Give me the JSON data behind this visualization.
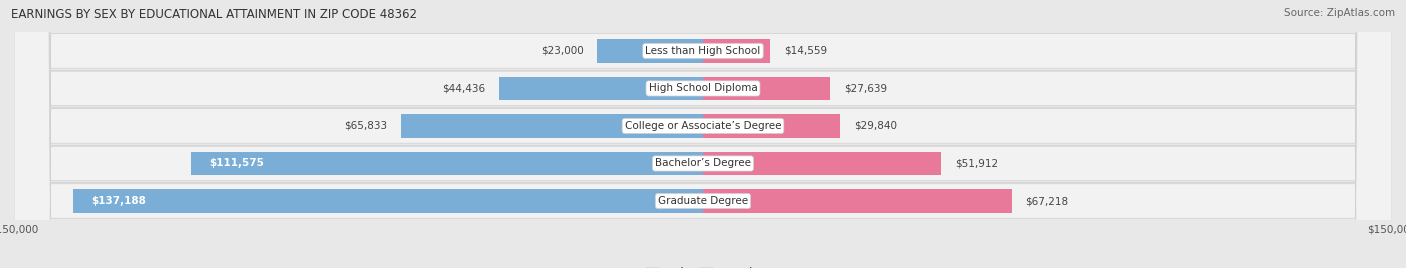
{
  "title": "EARNINGS BY SEX BY EDUCATIONAL ATTAINMENT IN ZIP CODE 48362",
  "source": "Source: ZipAtlas.com",
  "categories": [
    "Less than High School",
    "High School Diploma",
    "College or Associate’s Degree",
    "Bachelor’s Degree",
    "Graduate Degree"
  ],
  "male_values": [
    23000,
    44436,
    65833,
    111575,
    137188
  ],
  "female_values": [
    14559,
    27639,
    29840,
    51912,
    67218
  ],
  "male_color": "#7aaed6",
  "female_color": "#e8799a",
  "max_value": 150000,
  "bar_height": 0.62,
  "background_color": "#e8e8e8",
  "row_bg_color": "#f2f2f2",
  "row_sep_color": "#d0d0d0"
}
